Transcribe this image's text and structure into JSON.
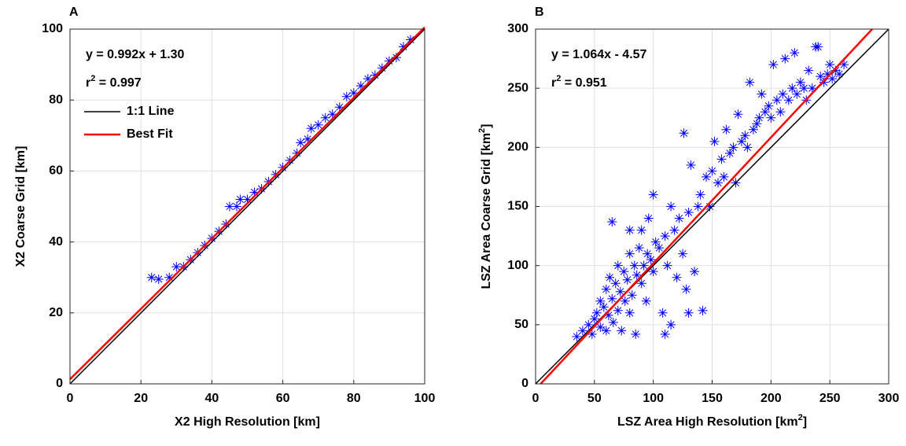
{
  "chart_data": [
    {
      "type": "scatter",
      "panel_label": "A",
      "xlabel": {
        "text": "X2 High Resolution [km]"
      },
      "ylabel": {
        "text": "X2 Coarse Grid [km]"
      },
      "xlim": [
        0,
        100
      ],
      "ylim": [
        0,
        100
      ],
      "xticks": [
        0,
        20,
        40,
        60,
        80,
        100
      ],
      "yticks": [
        0,
        20,
        40,
        60,
        80,
        100
      ],
      "grid": true,
      "legend": "upper left",
      "annotations": [
        {
          "text": "y = 0.992x + 1.30"
        },
        {
          "text": "r",
          "sup": "2",
          "after": " = 0.997"
        }
      ],
      "series": [
        {
          "color": "#0000ff",
          "marker": "asterisk",
          "x": [
            23,
            25,
            28,
            30,
            32,
            34,
            36,
            38,
            40,
            42,
            44,
            45,
            47,
            48,
            50,
            52,
            54,
            56,
            58,
            60,
            62,
            64,
            65,
            67,
            68,
            70,
            72,
            74,
            76,
            78,
            80,
            82,
            84,
            86,
            88,
            90,
            92,
            94,
            96
          ],
          "values": [
            30,
            29.5,
            30,
            33,
            33,
            35,
            37,
            39,
            41,
            43,
            45,
            50,
            50,
            52,
            52,
            54,
            55,
            57,
            59,
            61,
            63,
            65,
            68,
            69,
            72,
            73,
            75,
            76,
            78,
            81,
            82,
            84,
            86,
            87,
            89,
            91,
            92,
            95,
            97
          ]
        }
      ],
      "lines": [
        {
          "name": "1:1 Line",
          "color": "#000000",
          "x": [
            0,
            100
          ],
          "y": [
            0,
            100
          ]
        },
        {
          "name": "Best Fit",
          "color": "#ff0000",
          "x": [
            0,
            100
          ],
          "y": [
            1.3,
            100.5
          ]
        }
      ]
    },
    {
      "type": "scatter",
      "panel_label": "B",
      "xlabel": {
        "text": "LSZ Area High Resolution [km",
        "sup": "2",
        "after": "]"
      },
      "ylabel": {
        "text": "LSZ Area Coarse Grid [km",
        "sup": "2",
        "after": "]"
      },
      "xlim": [
        0,
        300
      ],
      "ylim": [
        0,
        300
      ],
      "xticks": [
        0,
        50,
        100,
        150,
        200,
        250,
        300
      ],
      "yticks": [
        0,
        50,
        100,
        150,
        200,
        250,
        300
      ],
      "grid": true,
      "annotations": [
        {
          "text": "y = 1.064x - 4.57"
        },
        {
          "text": "r",
          "sup": "2",
          "after": " = 0.951"
        }
      ],
      "series": [
        {
          "color": "#0000ff",
          "marker": "asterisk",
          "x": [
            35,
            40,
            45,
            48,
            50,
            52,
            55,
            55,
            58,
            60,
            60,
            62,
            63,
            65,
            65,
            66,
            68,
            70,
            70,
            72,
            73,
            75,
            76,
            78,
            80,
            80,
            80,
            82,
            84,
            85,
            86,
            88,
            90,
            90,
            92,
            94,
            95,
            96,
            98,
            100,
            100,
            102,
            105,
            108,
            110,
            110,
            112,
            115,
            115,
            118,
            120,
            122,
            125,
            126,
            128,
            130,
            130,
            132,
            135,
            138,
            140,
            142,
            145,
            148,
            150,
            152,
            155,
            158,
            160,
            162,
            165,
            168,
            170,
            172,
            175,
            178,
            180,
            182,
            185,
            188,
            190,
            192,
            195,
            198,
            200,
            202,
            205,
            208,
            210,
            212,
            215,
            218,
            220,
            222,
            225,
            228,
            230,
            232,
            235,
            238,
            240,
            242,
            245,
            248,
            250,
            252,
            255,
            258,
            262
          ],
          "values": [
            40,
            45,
            50,
            42,
            55,
            60,
            48,
            70,
            65,
            45,
            80,
            58,
            90,
            72,
            137,
            52,
            85,
            62,
            100,
            78,
            45,
            95,
            70,
            88,
            60,
            110,
            130,
            75,
            100,
            42,
            92,
            115,
            85,
            130,
            100,
            70,
            110,
            140,
            105,
            95,
            160,
            120,
            115,
            60,
            125,
            42,
            100,
            150,
            50,
            130,
            90,
            140,
            110,
            212,
            80,
            145,
            60,
            185,
            95,
            150,
            160,
            62,
            175,
            150,
            180,
            205,
            170,
            190,
            175,
            215,
            195,
            200,
            170,
            228,
            205,
            210,
            200,
            255,
            215,
            220,
            225,
            245,
            230,
            235,
            225,
            270,
            240,
            230,
            245,
            275,
            240,
            250,
            280,
            245,
            255,
            250,
            240,
            265,
            250,
            285,
            285,
            260,
            255,
            262,
            270,
            258,
            265,
            262,
            270
          ]
        }
      ],
      "lines": [
        {
          "color": "#000000",
          "x": [
            0,
            300
          ],
          "y": [
            0,
            300
          ]
        },
        {
          "color": "#ff0000",
          "x": [
            4.3,
            286
          ],
          "y": [
            0,
            300
          ]
        }
      ]
    }
  ]
}
